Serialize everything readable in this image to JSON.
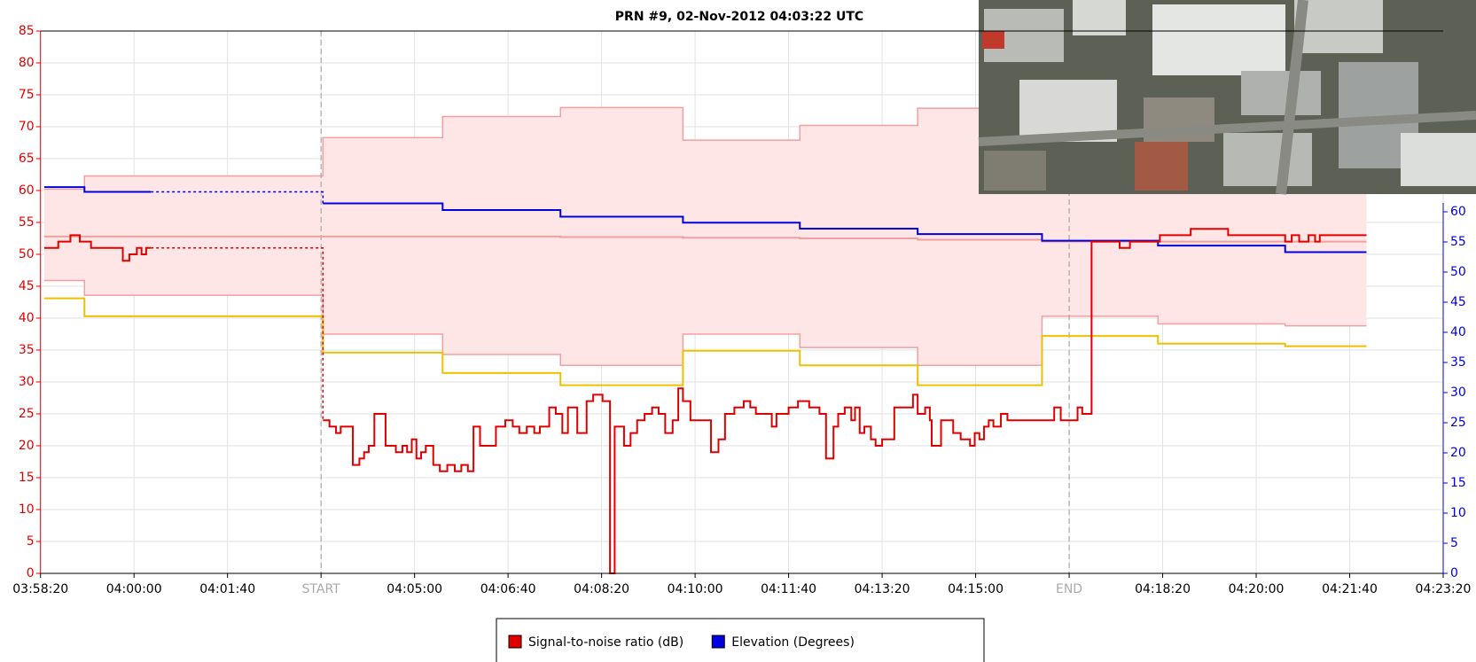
{
  "chart_data": {
    "type": "step",
    "title": "PRN #9, 02-Nov-2012 04:03:22 UTC",
    "xlim": [
      14300,
      15800
    ],
    "xticks": [
      {
        "value": 14300,
        "label": "03:58:20"
      },
      {
        "value": 14400,
        "label": "04:00:00"
      },
      {
        "value": 14500,
        "label": "04:01:40"
      },
      {
        "value": 14600,
        "label": "START"
      },
      {
        "value": 14700,
        "label": "04:05:00"
      },
      {
        "value": 14800,
        "label": "04:06:40"
      },
      {
        "value": 14900,
        "label": "04:08:20"
      },
      {
        "value": 15000,
        "label": "04:10:00"
      },
      {
        "value": 15100,
        "label": "04:11:40"
      },
      {
        "value": 15200,
        "label": "04:13:20"
      },
      {
        "value": 15300,
        "label": "04:15:00"
      },
      {
        "value": 15400,
        "label": "END"
      },
      {
        "value": 15500,
        "label": "04:18:20"
      },
      {
        "value": 15600,
        "label": "04:20:00"
      },
      {
        "value": 15700,
        "label": "04:21:40"
      },
      {
        "value": 15800,
        "label": "04:23:20"
      }
    ],
    "event_lines": [
      14600,
      15400
    ],
    "ylim": [
      0,
      85
    ],
    "yticks": [
      0,
      5,
      10,
      15,
      20,
      25,
      30,
      35,
      40,
      45,
      50,
      55,
      60,
      65,
      70,
      75,
      80,
      85
    ],
    "y_color": "#e00000",
    "y2lim": [
      0,
      90
    ],
    "y2ticks": [
      0,
      5,
      10,
      15,
      20,
      25,
      30,
      35,
      40,
      45,
      50,
      55,
      60
    ],
    "y2_color": "#0000e0",
    "grid": true,
    "legend": "bottom",
    "band": {
      "fill": "#ffe6e6",
      "color": "#f0a0a0",
      "x": [
        14304,
        14347,
        14602,
        14730,
        14856,
        14987,
        15112,
        15238,
        15371,
        15495,
        15631,
        15718
      ],
      "upper": [
        60.2,
        62.3,
        68.3,
        71.6,
        73,
        67.9,
        70.2,
        72.9,
        72,
        70,
        70,
        70
      ],
      "lower": [
        45.9,
        43.6,
        37.5,
        34.3,
        32.6,
        37.5,
        35.4,
        32.6,
        40.3,
        39.1,
        38.8,
        38.8
      ]
    },
    "series": [
      {
        "name": "Signal-to-noise ratio (dB)",
        "color": "#e00000",
        "x": [
          14304,
          14319,
          14332,
          14342,
          14354,
          14388,
          14395,
          14403,
          14408,
          14413,
          14418,
          null,
          14602,
          14609,
          14616,
          14621,
          14634,
          14641,
          14646,
          14651,
          14657,
          14669,
          14680,
          14687,
          14692,
          14697,
          14702,
          14707,
          14712,
          14720,
          14727,
          14735,
          14743,
          14750,
          14757,
          14763,
          14770,
          14787,
          14797,
          14805,
          14812,
          14820,
          14828,
          14834,
          14844,
          14851,
          14858,
          14864,
          14874,
          14884,
          14891,
          14901,
          14909,
          14914,
          14924,
          14931,
          14938,
          14946,
          14954,
          14961,
          14968,
          14976,
          14982,
          14987,
          14995,
          15017,
          15025,
          15032,
          15042,
          15052,
          15059,
          15065,
          15082,
          15087,
          15100,
          15110,
          15122,
          15133,
          15140,
          15148,
          15153,
          15160,
          15167,
          15171,
          15176,
          15181,
          15188,
          15193,
          15200,
          15213,
          15233,
          15238,
          15246,
          15251,
          15253,
          15263,
          15276,
          15284,
          15294,
          15299,
          15304,
          15309,
          15314,
          15319,
          15327,
          15334,
          15384,
          15391,
          15409,
          15414,
          15424,
          15454,
          15465,
          15497,
          15530,
          15570,
          15631,
          15638,
          15646,
          15656,
          15663,
          15668,
          15718
        ],
        "values": [
          51,
          52,
          53,
          52,
          51,
          49,
          50,
          51,
          50,
          51,
          51,
          null,
          24,
          23,
          22,
          23,
          17,
          18,
          19,
          20,
          25,
          20,
          19,
          20,
          19,
          21,
          18,
          19,
          20,
          17,
          16,
          17,
          16,
          17,
          16,
          23,
          20,
          23,
          24,
          23,
          22,
          23,
          22,
          23,
          26,
          25,
          22,
          26,
          22,
          27,
          28,
          27,
          0,
          23,
          20,
          22,
          24,
          25,
          26,
          25,
          22,
          24,
          29,
          27,
          24,
          19,
          21,
          25,
          26,
          27,
          26,
          25,
          23,
          25,
          26,
          27,
          26,
          25,
          18,
          23,
          25,
          26,
          24,
          26,
          22,
          23,
          21,
          20,
          21,
          26,
          28,
          25,
          26,
          24,
          20,
          24,
          22,
          21,
          20,
          22,
          21,
          23,
          24,
          23,
          25,
          24,
          26,
          24,
          26,
          25,
          52,
          51,
          52,
          53,
          54,
          53,
          52,
          53,
          52,
          53,
          52,
          53,
          53
        ]
      },
      {
        "name": "Elevation (Degrees)",
        "color": "#0000e0",
        "axis": "y2",
        "x": [
          14304,
          14347,
          14418,
          null,
          14602,
          14730,
          14856,
          14987,
          15112,
          15238,
          15371,
          15495,
          15631,
          15718
        ],
        "values": [
          64.1,
          63.3,
          63.3,
          null,
          61.4,
          60.3,
          59.2,
          58.2,
          57.2,
          56.3,
          55.2,
          54.4,
          53.3,
          53.3
        ]
      },
      {
        "color": "#f0a0a0",
        "x": [
          14304,
          14856,
          14987,
          15112,
          15238,
          15371,
          15718
        ],
        "values": [
          52.8,
          52.7,
          52.6,
          52.5,
          52.3,
          52,
          52
        ]
      },
      {
        "color": "#f0c000",
        "x": [
          14304,
          14347,
          14602,
          14730,
          14856,
          14987,
          15112,
          15238,
          15371,
          15495,
          15631,
          15718
        ],
        "values": [
          43.1,
          40.3,
          34.6,
          31.4,
          29.5,
          34.9,
          32.6,
          29.5,
          37.2,
          36,
          35.6,
          35.6
        ]
      }
    ]
  }
}
